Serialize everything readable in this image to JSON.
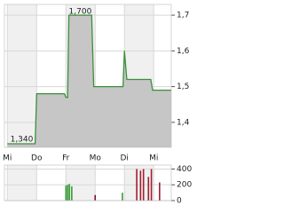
{
  "chart_data": [
    {
      "type": "area",
      "x": [
        0,
        0.95,
        1.0,
        1.95,
        2.0,
        2.06,
        2.1,
        2.88,
        2.95,
        3.95,
        4.0,
        4.08,
        4.9,
        4.96,
        5.6
      ],
      "values": [
        1.34,
        1.34,
        1.48,
        1.48,
        1.47,
        1.47,
        1.7,
        1.7,
        1.5,
        1.5,
        1.6,
        1.52,
        1.52,
        1.49,
        1.49
      ],
      "color": "#3a8f3a",
      "fill": "#c6c6c6",
      "xlim": [
        -0.1,
        5.6
      ],
      "xticks": [
        {
          "value": 0,
          "label": "Mi"
        },
        {
          "value": 1,
          "label": "Do"
        },
        {
          "value": 2,
          "label": "Fr"
        },
        {
          "value": 3,
          "label": "Mo"
        },
        {
          "value": 4,
          "label": "Di"
        },
        {
          "value": 5,
          "label": "Mi"
        }
      ],
      "ylim": [
        1.33,
        1.73
      ],
      "yticks": [
        {
          "value": 1.4,
          "label": "1,4"
        },
        {
          "value": 1.5,
          "label": "1,5"
        },
        {
          "value": 1.6,
          "label": "1,6"
        },
        {
          "value": 1.7,
          "label": "1,7"
        }
      ],
      "annotations": [
        {
          "text": "1,700",
          "x": 2.1,
          "y": 1.7
        },
        {
          "text": "1,340",
          "x": 0.1,
          "y": 1.34
        }
      ],
      "grid": true
    },
    {
      "type": "bar",
      "x": [
        2.0,
        2.06,
        2.12,
        2.2,
        3.0,
        3.93,
        4.42,
        4.55,
        4.65,
        4.82,
        4.92,
        5.2
      ],
      "values": [
        190,
        200,
        210,
        180,
        70,
        100,
        400,
        380,
        400,
        300,
        400,
        230
      ],
      "colors": [
        "#3a9a3a",
        "#3a9a3a",
        "#3a9a3a",
        "#3a9a3a",
        "#7a1020",
        "#3a9a3a",
        "#a02030",
        "#a02030",
        "#a02030",
        "#a02030",
        "#a02030",
        "#a02030"
      ],
      "xlim": [
        -0.1,
        5.6
      ],
      "ylim": [
        0,
        450
      ],
      "yticks": [
        0,
        200,
        400
      ],
      "grid": true
    }
  ]
}
